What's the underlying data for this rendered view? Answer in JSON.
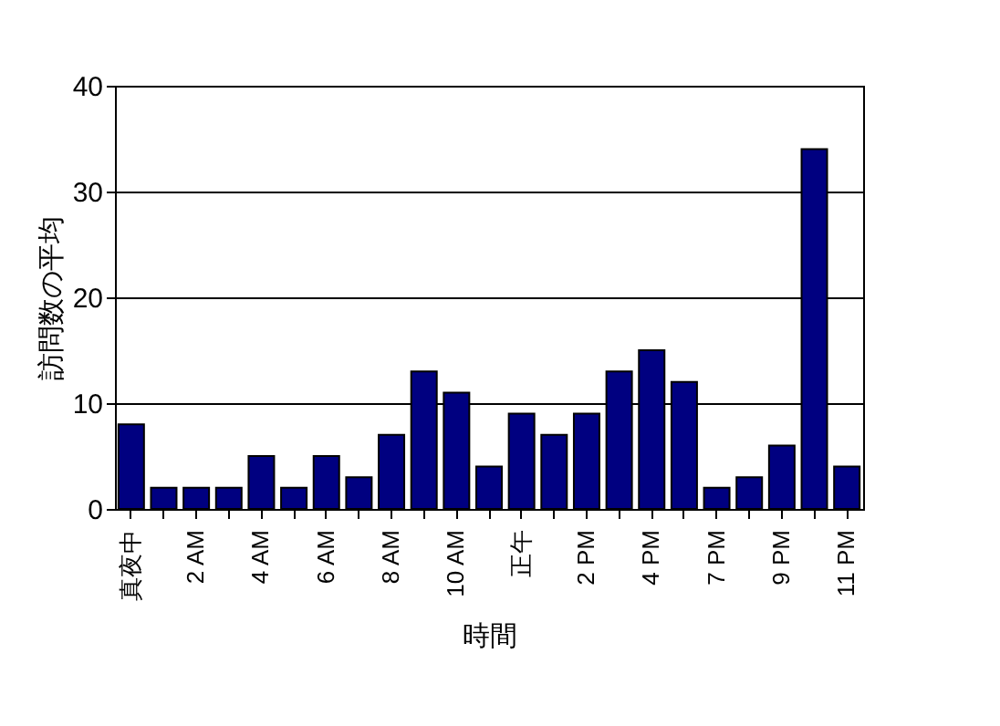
{
  "chart_data": {
    "type": "bar",
    "xlabel": "時間",
    "ylabel": "訪問数の平均",
    "categories": [
      "真夜中",
      null,
      "2 AM",
      null,
      "4 AM",
      null,
      "6 AM",
      null,
      "8 AM",
      null,
      "10 AM",
      null,
      "正午",
      null,
      "2 PM",
      null,
      "4 PM",
      null,
      "7 PM",
      null,
      "9 PM",
      null,
      "11 PM"
    ],
    "values": [
      8,
      2,
      2,
      2,
      5,
      2,
      5,
      3,
      7,
      13,
      11,
      4,
      9,
      7,
      9,
      13,
      15,
      12,
      2,
      3,
      6,
      34,
      4
    ],
    "color": "#000080",
    "ylim": [
      0,
      40
    ],
    "yticks": [
      0,
      10,
      20,
      30,
      40
    ],
    "grid": "y"
  }
}
